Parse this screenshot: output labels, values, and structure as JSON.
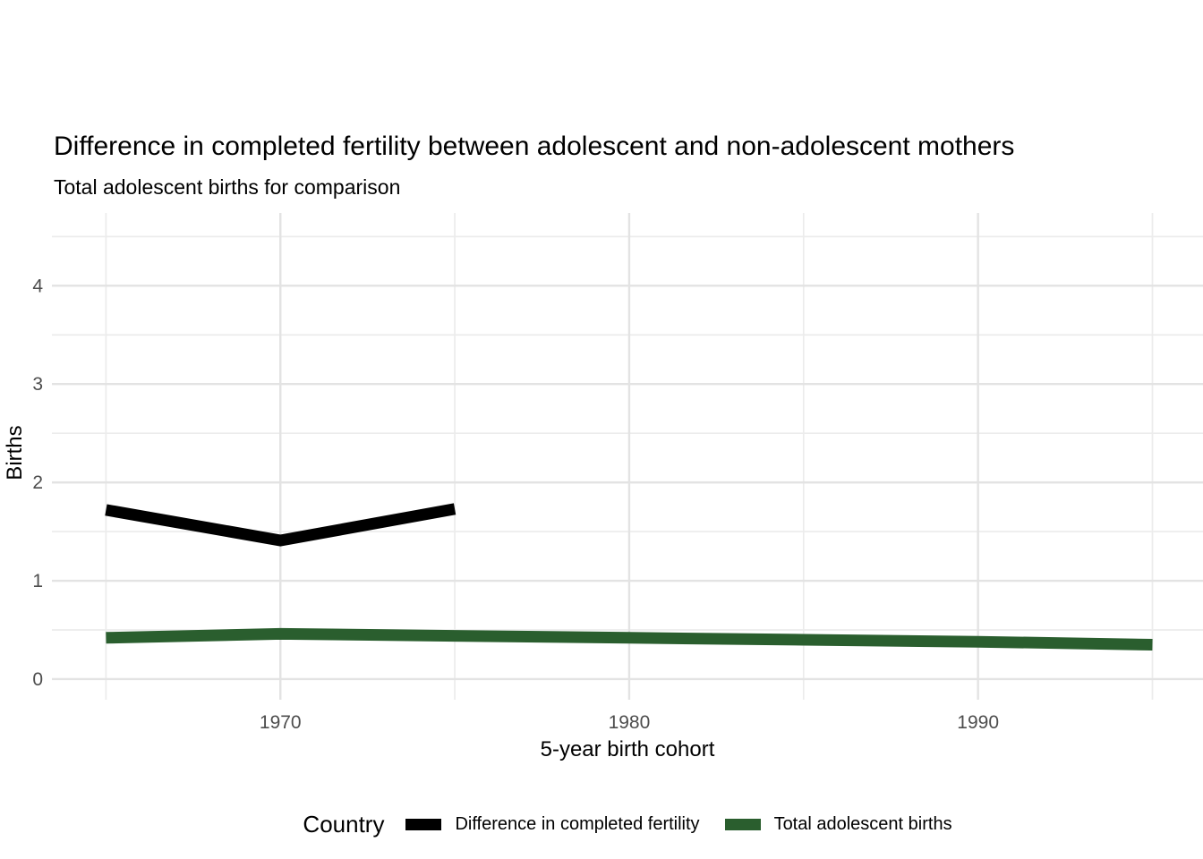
{
  "chart_data": {
    "type": "line",
    "title": "Difference in completed fertility between adolescent and non-adolescent mothers",
    "subtitle": "Total adolescent births for comparison",
    "xlabel": "5-year birth cohort",
    "ylabel": "Births",
    "legend": {
      "title": "Country",
      "position": "bottom"
    },
    "grid": true,
    "x_domain": [
      1963.45,
      1996.45
    ],
    "y_domain": [
      -0.21,
      4.74
    ],
    "x_major_ticks": [
      1970,
      1980,
      1990
    ],
    "x_tick_labels": [
      "1970",
      "1980",
      "1990"
    ],
    "x_minor_ticks": [
      1965,
      1975,
      1985,
      1995
    ],
    "y_major_ticks": [
      0,
      1,
      2,
      3,
      4
    ],
    "y_tick_labels": [
      "0",
      "1",
      "2",
      "3",
      "4"
    ],
    "y_minor_ticks": [
      0.5,
      1.5,
      2.5,
      3.5,
      4.5
    ],
    "series": [
      {
        "name": "Difference in completed fertility",
        "color": "#000000",
        "x": [
          1965,
          1970,
          1975
        ],
        "values": [
          1.72,
          1.41,
          1.73
        ]
      },
      {
        "name": "Total adolescent births",
        "color": "#2a5e2e",
        "x": [
          1965,
          1970,
          1975,
          1980,
          1985,
          1990,
          1995
        ],
        "values": [
          0.42,
          0.46,
          0.44,
          0.42,
          0.4,
          0.38,
          0.35
        ]
      }
    ],
    "colors": {
      "grid_major": "#e3e3e3",
      "grid_minor": "#ececec",
      "tick_label": "#4d4d4d"
    }
  }
}
